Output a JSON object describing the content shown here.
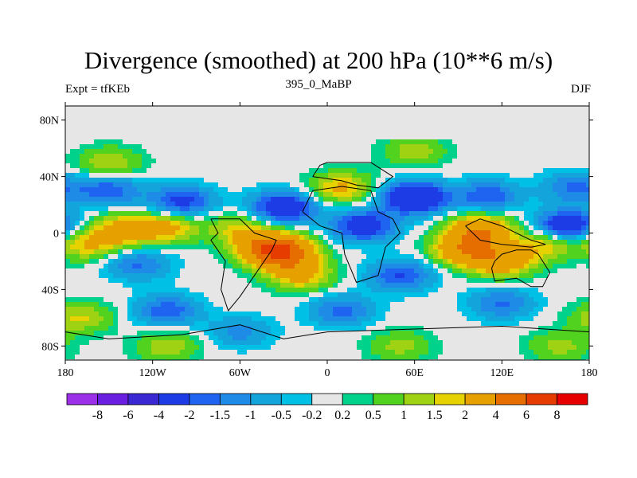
{
  "chart_data": {
    "type": "heatmap",
    "title": "Divergence (smoothed) at 200 hPa (10**6 m/s)",
    "left_label": "Expt = tfKEb",
    "center_label": "395_0_MaBP",
    "right_label": "DJF",
    "x_range": [
      -180,
      180
    ],
    "y_range": [
      -90,
      90
    ],
    "x_tick_labels": [
      "180",
      "120W",
      "60W",
      "0",
      "60E",
      "120E",
      "180"
    ],
    "x_tick_values": [
      -180,
      -120,
      -60,
      0,
      60,
      120,
      180
    ],
    "y_tick_labels": [
      "80N",
      "40N",
      "0",
      "40S",
      "80S"
    ],
    "y_tick_values": [
      80,
      40,
      0,
      -40,
      -80
    ],
    "colorbar_levels": [
      "-8",
      "-6",
      "-4",
      "-2",
      "-1.5",
      "-1",
      "-0.5",
      "-0.2",
      "0.2",
      "0.5",
      "1",
      "1.5",
      "2",
      "4",
      "6",
      "8"
    ],
    "colorbar_colors": [
      "#9b30e8",
      "#6a1ee0",
      "#3c28d2",
      "#1e3ce6",
      "#1e64f0",
      "#1e8ce6",
      "#14a4dc",
      "#00c0e6",
      "#e6e6e6",
      "#00d28c",
      "#50d21e",
      "#a0d214",
      "#e6d200",
      "#e6a000",
      "#e66e00",
      "#e63c00",
      "#e60000"
    ],
    "field": [
      {
        "lon": -140,
        "lat": 2,
        "value": 2.6
      },
      {
        "lon": -110,
        "lat": 4,
        "value": 2.2
      },
      {
        "lon": -60,
        "lat": 3,
        "value": 1.6
      },
      {
        "lon": -165,
        "lat": -8,
        "value": 2.0
      },
      {
        "lon": -40,
        "lat": -10,
        "value": 3.6
      },
      {
        "lon": -30,
        "lat": -15,
        "value": 4.2
      },
      {
        "lon": -18,
        "lat": -30,
        "value": 2.2
      },
      {
        "lon": 105,
        "lat": 2,
        "value": 3.6
      },
      {
        "lon": 95,
        "lat": -12,
        "value": 3.4
      },
      {
        "lon": 120,
        "lat": -20,
        "value": 3.0
      },
      {
        "lon": 150,
        "lat": -8,
        "value": 1.9
      },
      {
        "lon": 10,
        "lat": 32,
        "value": 2.2
      },
      {
        "lon": -150,
        "lat": 50,
        "value": 1.5
      },
      {
        "lon": 60,
        "lat": 58,
        "value": 1.3
      },
      {
        "lon": -170,
        "lat": -60,
        "value": 1.6
      },
      {
        "lon": -110,
        "lat": -80,
        "value": 1.4
      },
      {
        "lon": 50,
        "lat": -80,
        "value": 1.2
      },
      {
        "lon": 160,
        "lat": -80,
        "value": 1.2
      },
      {
        "lon": -100,
        "lat": 22,
        "value": -2.4
      },
      {
        "lon": -30,
        "lat": 18,
        "value": -3.2
      },
      {
        "lon": 60,
        "lat": 25,
        "value": -3.8
      },
      {
        "lon": 110,
        "lat": 26,
        "value": -2.0
      },
      {
        "lon": 165,
        "lat": 5,
        "value": -3.2
      },
      {
        "lon": 25,
        "lat": 5,
        "value": -2.8
      },
      {
        "lon": -130,
        "lat": -22,
        "value": -1.6
      },
      {
        "lon": 50,
        "lat": -30,
        "value": -2.1
      },
      {
        "lon": -110,
        "lat": -55,
        "value": -1.9
      },
      {
        "lon": 10,
        "lat": -55,
        "value": -1.7
      },
      {
        "lon": 120,
        "lat": -50,
        "value": -1.6
      },
      {
        "lon": -150,
        "lat": 30,
        "value": -1.9
      },
      {
        "lon": 170,
        "lat": 32,
        "value": -1.6
      },
      {
        "lon": -60,
        "lat": -70,
        "value": -1.2
      }
    ]
  }
}
